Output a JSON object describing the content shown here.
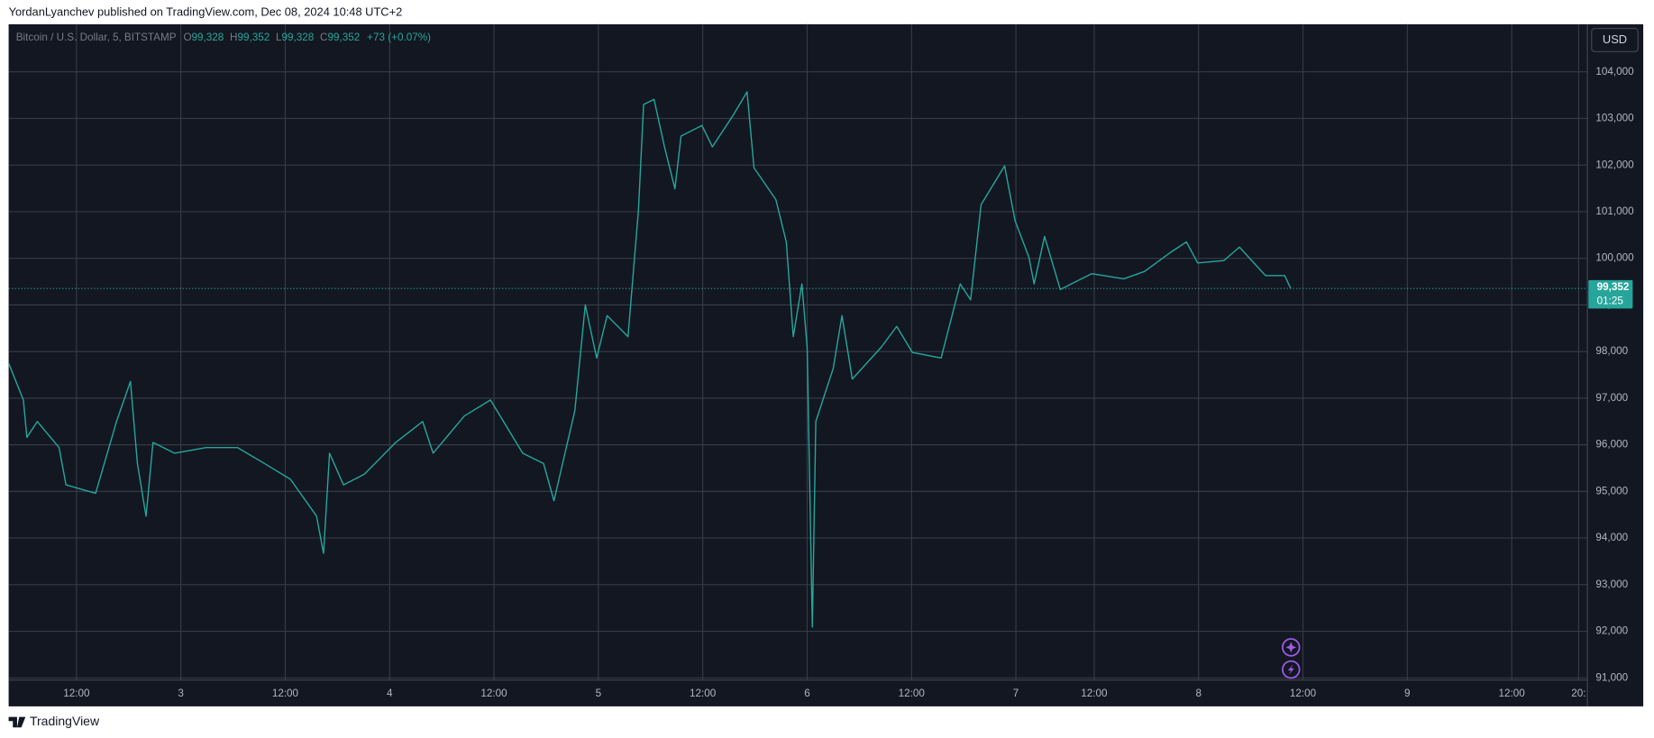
{
  "header": "YordanLyanchev published on TradingView.com, Dec 08, 2024 10:48 UTC+2",
  "footer": "TradingView",
  "legend": {
    "symbol": "Bitcoin / U.S. Dollar, 5, BITSTAMP",
    "ohlc": [
      {
        "key": "O",
        "label": "99,328"
      },
      {
        "key": "H",
        "label": "99,352"
      },
      {
        "key": "L",
        "label": "99,328"
      },
      {
        "key": "C",
        "label": "99,352"
      }
    ],
    "change": "+73 (+0.07%)"
  },
  "currency": "USD",
  "last_price": {
    "value": 99352,
    "label": "99,352"
  },
  "countdown": "01:25",
  "chart_data": {
    "type": "line",
    "x": [
      4.2,
      5.9,
      6.3,
      7.5,
      10.0,
      10.8,
      14.2,
      16.6,
      18.2,
      19.0,
      20.0,
      20.8,
      23.3,
      26.9,
      30.5,
      33.6,
      36.6,
      39.6,
      40.4,
      41.1,
      42.7,
      45.1,
      48.7,
      51.8,
      53.0,
      56.6,
      59.6,
      63.3,
      65.7,
      66.9,
      69.3,
      70.5,
      71.8,
      73.0,
      75.4,
      76.6,
      77.2,
      78.4,
      79.6,
      80.8,
      81.5,
      83.9,
      85.1,
      87.5,
      89.1,
      89.9,
      92.4,
      93.6,
      94.4,
      95.4,
      96.0,
      96.6,
      97.0,
      99.0,
      100.0,
      101.2,
      104.5,
      106.3,
      108.1,
      111.4,
      113.6,
      114.8,
      116.0,
      118.7,
      119.9,
      121.5,
      122.1,
      123.3,
      125.1,
      128.7,
      132.4,
      134.8,
      137.8,
      139.6,
      140.9,
      143.9,
      145.7,
      148.7,
      150.9,
      151.6
    ],
    "series": [
      {
        "color": "#26a69a",
        "values": [
          97750,
          96960,
          96160,
          96500,
          95940,
          95140,
          94960,
          96500,
          97360,
          95600,
          94470,
          96050,
          95820,
          95940,
          95940,
          95600,
          95260,
          94470,
          93670,
          95820,
          95140,
          95370,
          96050,
          96500,
          95820,
          96620,
          96960,
          95820,
          95600,
          94800,
          96730,
          99000,
          97860,
          98770,
          98320,
          101030,
          103300,
          103410,
          102390,
          101490,
          102620,
          102850,
          102390,
          103070,
          103570,
          101940,
          101260,
          100350,
          98320,
          99450,
          98090,
          92090,
          96500,
          97640,
          98770,
          97410,
          98090,
          98540,
          97980,
          97860,
          99450,
          99110,
          101150,
          101980,
          100810,
          100020,
          99450,
          100470,
          99330,
          99670,
          99560,
          99720,
          100130,
          100350,
          99900,
          99950,
          100240,
          99630,
          99630,
          99352
        ]
      }
    ],
    "xlim": [
      4.2,
      185.7
    ],
    "xticks": [
      {
        "value": 12,
        "label": "12:00"
      },
      {
        "value": 24,
        "label": "3"
      },
      {
        "value": 36,
        "label": "12:00"
      },
      {
        "value": 48,
        "label": "4"
      },
      {
        "value": 60,
        "label": "12:00"
      },
      {
        "value": 72,
        "label": "5"
      },
      {
        "value": 84,
        "label": "12:00"
      },
      {
        "value": 96,
        "label": "6"
      },
      {
        "value": 108,
        "label": "12:00"
      },
      {
        "value": 120,
        "label": "7"
      },
      {
        "value": 129,
        "label": "12:00"
      },
      {
        "value": 141,
        "label": "8"
      },
      {
        "value": 153,
        "label": "12:00"
      },
      {
        "value": 165,
        "label": "9"
      },
      {
        "value": 177,
        "label": "12:00"
      },
      {
        "value": 184.7,
        "label": "20:"
      }
    ],
    "ylim": [
      90955,
      105020
    ],
    "yticks": [
      {
        "value": 91000,
        "label": "91,000"
      },
      {
        "value": 92000,
        "label": "92,000"
      },
      {
        "value": 93000,
        "label": "93,000"
      },
      {
        "value": 94000,
        "label": "94,000"
      },
      {
        "value": 95000,
        "label": "95,000"
      },
      {
        "value": 96000,
        "label": "96,000"
      },
      {
        "value": 97000,
        "label": "97,000"
      },
      {
        "value": 98000,
        "label": "98,000"
      },
      {
        "value": 99000,
        "label": "99,000"
      },
      {
        "value": 100000,
        "label": "100,000"
      },
      {
        "value": 101000,
        "label": "101,000"
      },
      {
        "value": 102000,
        "label": "102,000"
      },
      {
        "value": 103000,
        "label": "103,000"
      },
      {
        "value": 104000,
        "label": "104,000"
      }
    ],
    "grid": true
  }
}
